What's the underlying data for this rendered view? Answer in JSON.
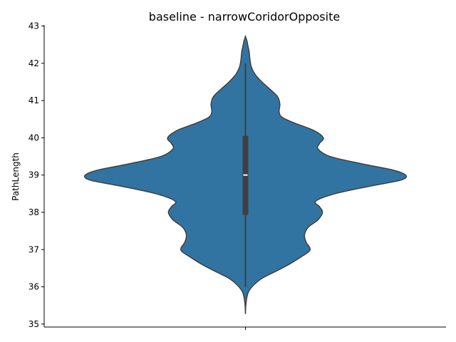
{
  "chart_data": {
    "type": "violin",
    "title": "baseline - narrowCoridorOpposite",
    "xlabel": "",
    "ylabel": "PathLength",
    "ylim": [
      34.92,
      43.03
    ],
    "yticks": [
      35,
      36,
      37,
      38,
      39,
      40,
      41,
      42,
      43
    ],
    "grid": false,
    "legend": "none",
    "colors": {
      "fill": "#3274a1",
      "edge": "#3f3f3f",
      "median": "#ffffff"
    },
    "violin": {
      "summary": {
        "min": 36.0,
        "q1": 37.93,
        "median": 39.0,
        "q3": 40.05,
        "max": 42.0
      },
      "density_profile": {
        "y": [
          35.28,
          35.6,
          35.9,
          36.2,
          36.4,
          36.6,
          36.8,
          36.95,
          37.05,
          37.2,
          37.4,
          37.6,
          37.8,
          38.0,
          38.15,
          38.3,
          38.5,
          38.7,
          38.85,
          38.95,
          39.05,
          39.15,
          39.3,
          39.5,
          39.7,
          39.85,
          40.0,
          40.2,
          40.4,
          40.55,
          40.7,
          40.9,
          41.1,
          41.3,
          41.5,
          41.7,
          41.9,
          42.1,
          42.3,
          42.5,
          42.6,
          42.72
        ],
        "width": [
          0.0,
          0.01,
          0.05,
          0.2,
          0.39,
          0.58,
          0.74,
          0.85,
          0.86,
          0.81,
          0.79,
          0.84,
          0.97,
          1.03,
          0.99,
          0.94,
          1.2,
          1.66,
          2.05,
          2.15,
          2.1,
          1.94,
          1.56,
          1.13,
          0.97,
          0.99,
          1.04,
          0.91,
          0.65,
          0.49,
          0.45,
          0.46,
          0.43,
          0.33,
          0.22,
          0.13,
          0.08,
          0.06,
          0.05,
          0.03,
          0.02,
          0.0
        ]
      }
    }
  }
}
